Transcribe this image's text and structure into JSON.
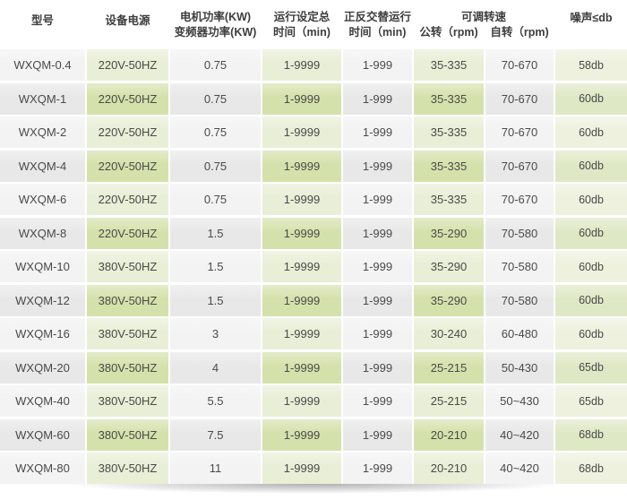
{
  "table": {
    "headers": {
      "model": "型号",
      "power_supply": "设备电源",
      "motor_power_line1": "电机功率(KW)",
      "motor_power_line2": "变频器功率(KW)",
      "run_time_line1": "运行设定总",
      "run_time_line2": "时间（min)",
      "alt_run_line1": "正反交替运行",
      "alt_run_line2": "时间（min)",
      "speed_group": "可调转速",
      "speed_revolution": "公转（rpm)",
      "speed_rotation": "自转（rpm)",
      "noise": "噪声≤db"
    },
    "rows": [
      [
        "WXQM-0.4",
        "220V-50HZ",
        "0.75",
        "1-9999",
        "1-999",
        "35-335",
        "70-670",
        "58db"
      ],
      [
        "WXQM-1",
        "220V-50HZ",
        "0.75",
        "1-9999",
        "1-999",
        "35-335",
        "70-670",
        "60db"
      ],
      [
        "WXQM-2",
        "220V-50HZ",
        "0.75",
        "1-9999",
        "1-999",
        "35-335",
        "70-670",
        "60db"
      ],
      [
        "WXQM-4",
        "220V-50HZ",
        "0.75",
        "1-9999",
        "1-999",
        "35-335",
        "70-670",
        "60db"
      ],
      [
        "WXQM-6",
        "220V-50HZ",
        "0.75",
        "1-9999",
        "1-999",
        "35-335",
        "70-670",
        "60db"
      ],
      [
        "WXQM-8",
        "220V-50HZ",
        "1.5",
        "1-9999",
        "1-999",
        "35-290",
        "70-580",
        "60db"
      ],
      [
        "WXQM-10",
        "380V-50HZ",
        "1.5",
        "1-9999",
        "1-999",
        "35-290",
        "70-580",
        "60db"
      ],
      [
        "WXQM-12",
        "380V-50HZ",
        "1.5",
        "1-9999",
        "1-999",
        "35-290",
        "70-580",
        "60db"
      ],
      [
        "WXQM-16",
        "380V-50HZ",
        "3",
        "1-9999",
        "1-999",
        "30-240",
        "60-480",
        "60db"
      ],
      [
        "WXQM-20",
        "380V-50HZ",
        "4",
        "1-9999",
        "1-999",
        "25-215",
        "50-430",
        "65db"
      ],
      [
        "WXQM-40",
        "380V-50HZ",
        "5.5",
        "1-9999",
        "1-999",
        "25-215",
        "50~430",
        "65db"
      ],
      [
        "WXQM-60",
        "380V-50HZ",
        "7.5",
        "1-9999",
        "1-999",
        "20-210",
        "40~420",
        "68db"
      ],
      [
        "WXQM-80",
        "380V-50HZ",
        "11",
        "1-9999",
        "1-999",
        "20-210",
        "40~420",
        "68db"
      ]
    ]
  },
  "colors": {
    "green_row_light": "#e9eed6",
    "green_row_dark": "#d5e1ab",
    "gray_row_light": "#f3f3f3",
    "gray_row_dark": "#e8e8e8",
    "noise_col_light": "#eef1de",
    "noise_col_dark": "#dfe8c5",
    "header_text": "#3d3d3d",
    "body_text": "#4a4a4a"
  }
}
